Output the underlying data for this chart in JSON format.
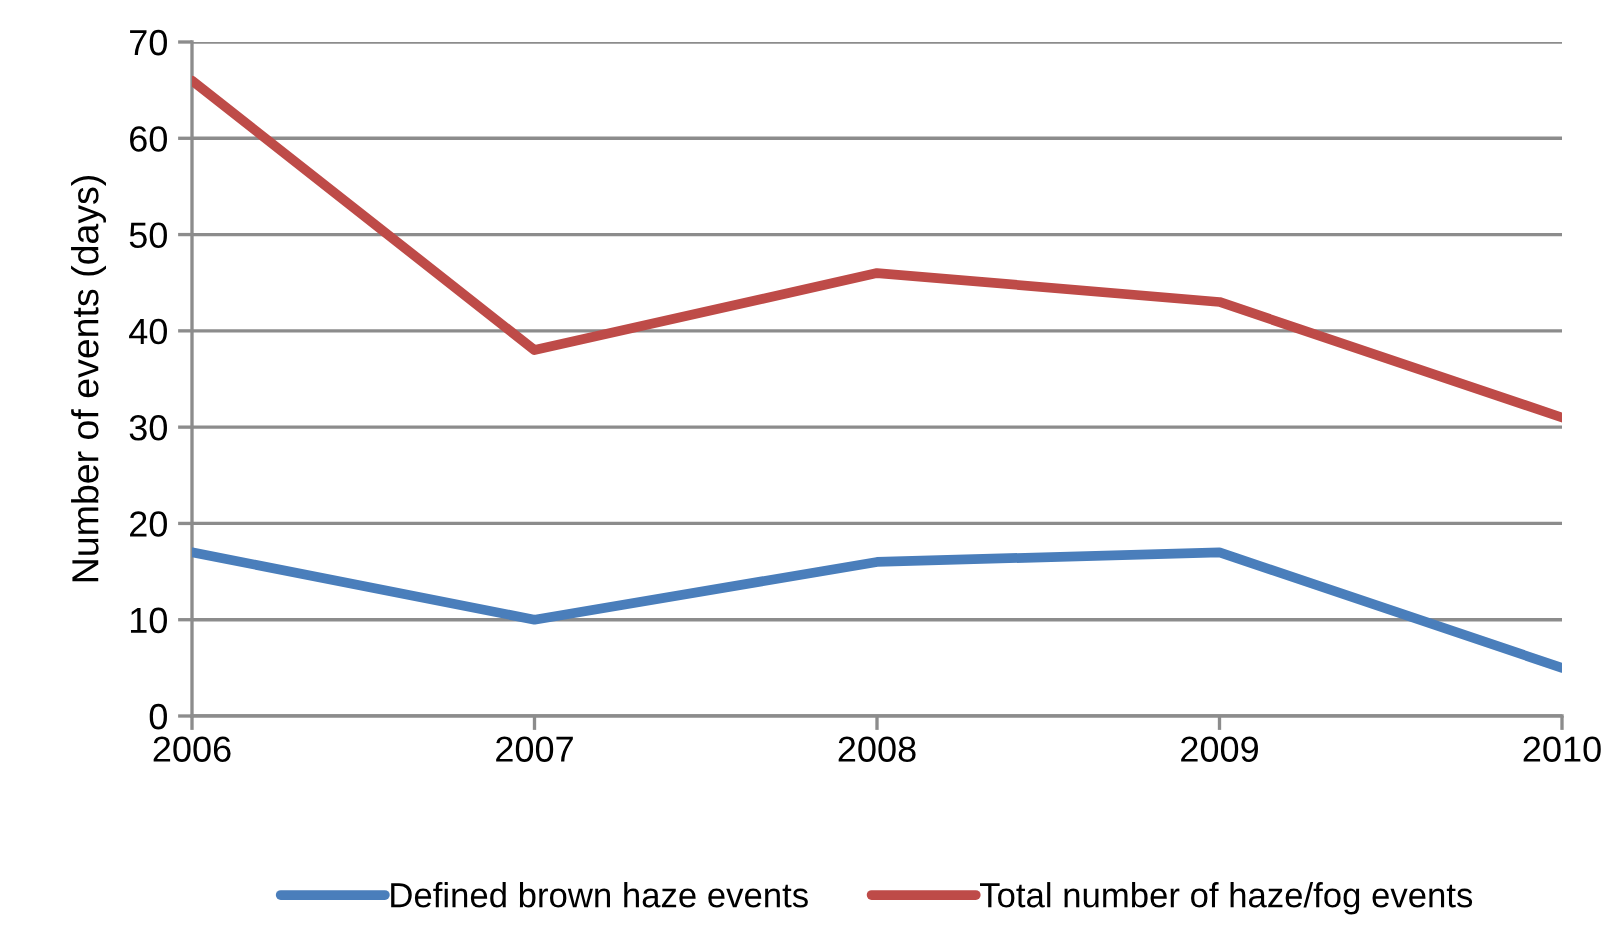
{
  "chart_data": {
    "type": "line",
    "ylabel": "Number of events (days)",
    "categories": [
      "2006",
      "2007",
      "2008",
      "2009",
      "2010"
    ],
    "series": [
      {
        "name": "Defined brown haze events",
        "color": "#4a7ebb",
        "values": [
          17,
          10,
          16,
          17,
          5
        ]
      },
      {
        "name": "Total number of haze/fog events",
        "color": "#be4b48",
        "values": [
          66,
          38,
          46,
          43,
          31
        ]
      }
    ],
    "ylim": [
      0,
      70
    ],
    "yticks": [
      0,
      10,
      20,
      30,
      40,
      50,
      60,
      70
    ],
    "grid": "y",
    "legend": "bottom",
    "line_style": "solid"
  }
}
